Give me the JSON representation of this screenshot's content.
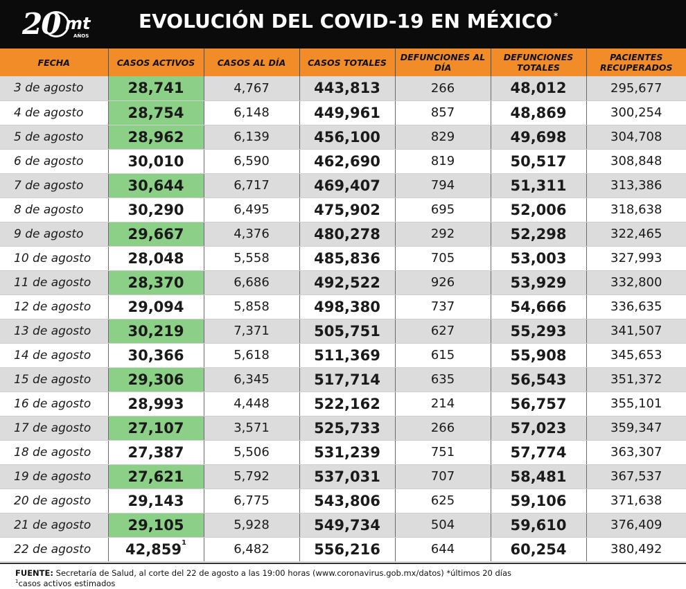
{
  "header": {
    "logo_number": "20",
    "logo_brand": "mt",
    "logo_subtitle": "AÑOS",
    "title": "EVOLUCIÓN DEL COVID-19 EN MÉXICO",
    "title_mark": "*"
  },
  "columns": [
    "FECHA",
    "CASOS ACTIVOS",
    "CASOS AL DÍA",
    "CASOS TOTALES",
    "DEFUNCIONES AL DÍA",
    "DEFUNCIONES TOTALES",
    "PACIENTES RECUPERADOS"
  ],
  "rows": [
    {
      "fecha": "3 de agosto",
      "activos": "28,741",
      "hl": true,
      "dia": "4,767",
      "totales": "443,813",
      "def_dia": "266",
      "def_tot": "48,012",
      "recuperados": "295,677"
    },
    {
      "fecha": "4 de agosto",
      "activos": "28,754",
      "hl": true,
      "dia": "6,148",
      "totales": "449,961",
      "def_dia": "857",
      "def_tot": "48,869",
      "recuperados": "300,254"
    },
    {
      "fecha": "5 de agosto",
      "activos": "28,962",
      "hl": true,
      "dia": "6,139",
      "totales": "456,100",
      "def_dia": "829",
      "def_tot": "49,698",
      "recuperados": "304,708"
    },
    {
      "fecha": "6 de agosto",
      "activos": "30,010",
      "hl": false,
      "dia": "6,590",
      "totales": "462,690",
      "def_dia": "819",
      "def_tot": "50,517",
      "recuperados": "308,848"
    },
    {
      "fecha": "7 de agosto",
      "activos": "30,644",
      "hl": true,
      "dia": "6,717",
      "totales": "469,407",
      "def_dia": "794",
      "def_tot": "51,311",
      "recuperados": "313,386"
    },
    {
      "fecha": "8 de agosto",
      "activos": "30,290",
      "hl": false,
      "dia": "6,495",
      "totales": "475,902",
      "def_dia": "695",
      "def_tot": "52,006",
      "recuperados": "318,638"
    },
    {
      "fecha": "9 de agosto",
      "activos": "29,667",
      "hl": true,
      "dia": "4,376",
      "totales": "480,278",
      "def_dia": "292",
      "def_tot": "52,298",
      "recuperados": "322,465"
    },
    {
      "fecha": "10 de agosto",
      "activos": "28,048",
      "hl": false,
      "dia": "5,558",
      "totales": "485,836",
      "def_dia": "705",
      "def_tot": "53,003",
      "recuperados": "327,993"
    },
    {
      "fecha": "11 de agosto",
      "activos": "28,370",
      "hl": true,
      "dia": "6,686",
      "totales": "492,522",
      "def_dia": "926",
      "def_tot": "53,929",
      "recuperados": "332,800"
    },
    {
      "fecha": "12 de agosto",
      "activos": "29,094",
      "hl": false,
      "dia": "5,858",
      "totales": "498,380",
      "def_dia": "737",
      "def_tot": "54,666",
      "recuperados": "336,635"
    },
    {
      "fecha": "13 de agosto",
      "activos": "30,219",
      "hl": true,
      "dia": "7,371",
      "totales": "505,751",
      "def_dia": "627",
      "def_tot": "55,293",
      "recuperados": "341,507"
    },
    {
      "fecha": "14 de agosto",
      "activos": "30,366",
      "hl": false,
      "dia": "5,618",
      "totales": "511,369",
      "def_dia": "615",
      "def_tot": "55,908",
      "recuperados": "345,653"
    },
    {
      "fecha": "15 de agosto",
      "activos": "29,306",
      "hl": true,
      "dia": "6,345",
      "totales": "517,714",
      "def_dia": "635",
      "def_tot": "56,543",
      "recuperados": "351,372"
    },
    {
      "fecha": "16 de agosto",
      "activos": "28,993",
      "hl": false,
      "dia": "4,448",
      "totales": "522,162",
      "def_dia": "214",
      "def_tot": "56,757",
      "recuperados": "355,101"
    },
    {
      "fecha": "17 de agosto",
      "activos": "27,107",
      "hl": true,
      "dia": "3,571",
      "totales": "525,733",
      "def_dia": "266",
      "def_tot": "57,023",
      "recuperados": "359,347"
    },
    {
      "fecha": "18 de agosto",
      "activos": "27,387",
      "hl": false,
      "dia": "5,506",
      "totales": "531,239",
      "def_dia": "751",
      "def_tot": "57,774",
      "recuperados": "363,307"
    },
    {
      "fecha": "19 de agosto",
      "activos": "27,621",
      "hl": true,
      "dia": "5,792",
      "totales": "537,031",
      "def_dia": "707",
      "def_tot": "58,481",
      "recuperados": "367,537"
    },
    {
      "fecha": "20 de agosto",
      "activos": "29,143",
      "hl": false,
      "dia": "6,775",
      "totales": "543,806",
      "def_dia": "625",
      "def_tot": "59,106",
      "recuperados": "371,638"
    },
    {
      "fecha": "21 de agosto",
      "activos": "29,105",
      "hl": true,
      "dia": "5,928",
      "totales": "549,734",
      "def_dia": "504",
      "def_tot": "59,610",
      "recuperados": "376,409"
    },
    {
      "fecha": "22 de agosto",
      "activos": "42,859",
      "activos_mark": "1",
      "hl": false,
      "dia": "6,482",
      "totales": "556,216",
      "def_dia": "644",
      "def_tot": "60,254",
      "recuperados": "380,492"
    }
  ],
  "footer": {
    "fuente_label": "FUENTE:",
    "fuente_text": " Secretaría de Salud, al corte del 22 de agosto a las 19:00 horas (www.coronavirus.gob.mx/datos) *últimos 20 días",
    "note_mark": "1",
    "note_text": "casos activos estimados"
  },
  "colors": {
    "header_bg": "#0b0b0b",
    "column_header_bg": "#f28c28",
    "highlight_green": "#8ccf87",
    "row_alt_gray": "#dcdcdc"
  }
}
